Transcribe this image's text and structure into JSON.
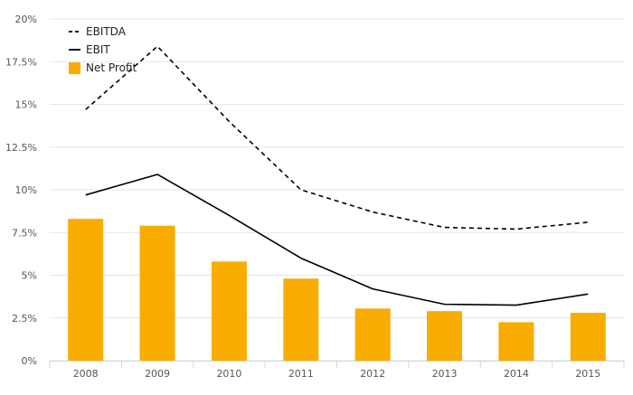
{
  "chart_data": {
    "type": "bar",
    "title": "",
    "xlabel": "",
    "ylabel": "",
    "categories": [
      "2008",
      "2009",
      "2010",
      "2011",
      "2012",
      "2013",
      "2014",
      "2015"
    ],
    "y_ticks": [
      "0%",
      "2.5%",
      "5%",
      "7.5%",
      "10%",
      "12.5%",
      "15%",
      "17.5%",
      "20%"
    ],
    "ylim": [
      0,
      20
    ],
    "grid": true,
    "legend_position": "top-left",
    "series": [
      {
        "name": "EBITDA",
        "kind": "line",
        "style": "dashed",
        "color": "#000000",
        "values": [
          14.7,
          18.4,
          14.0,
          10.0,
          8.7,
          7.8,
          7.7,
          8.1
        ]
      },
      {
        "name": "EBIT",
        "kind": "line",
        "style": "solid",
        "color": "#000000",
        "values": [
          9.7,
          10.9,
          8.5,
          6.0,
          4.2,
          3.3,
          3.25,
          3.9
        ]
      },
      {
        "name": "Net Profit",
        "kind": "bar",
        "color": "#f9ac00",
        "values": [
          8.3,
          7.9,
          5.8,
          4.8,
          3.05,
          2.9,
          2.25,
          2.8
        ]
      }
    ]
  }
}
